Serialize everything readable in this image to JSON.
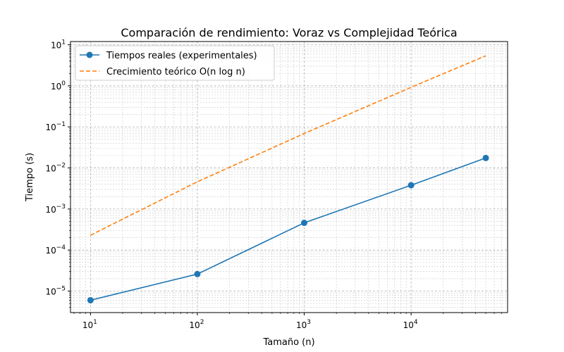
{
  "chart_data": {
    "type": "line",
    "title": "Comparación de rendimiento: Voraz vs Complejidad Teórica",
    "xlabel": "Tamaño (n)",
    "ylabel": "Tiempo (s)",
    "xscale": "log",
    "yscale": "log",
    "xlim": [
      6.5,
      80000
    ],
    "ylim": [
      3e-06,
      12
    ],
    "x_ticks": [
      10,
      100,
      1000,
      10000
    ],
    "y_ticks": [
      1e-05,
      0.0001,
      0.001,
      0.01,
      0.1,
      1,
      10
    ],
    "grid": true,
    "legend_position": "upper-left",
    "series": [
      {
        "name": "Tiempos reales (experimentales)",
        "color": "#1f77b4",
        "style": "solid",
        "marker": "circle",
        "x": [
          10,
          100,
          1000,
          10000,
          50000
        ],
        "y": [
          6e-06,
          2.6e-05,
          0.00046,
          0.0038,
          0.0175
        ]
      },
      {
        "name": "Crecimiento teórico O(n log n)",
        "color": "#ff7f0e",
        "style": "dashed",
        "marker": "none",
        "x": [
          10,
          100,
          1000,
          10000,
          50000
        ],
        "y": [
          0.00023,
          0.0046,
          0.069,
          0.92,
          5.4
        ]
      }
    ]
  }
}
